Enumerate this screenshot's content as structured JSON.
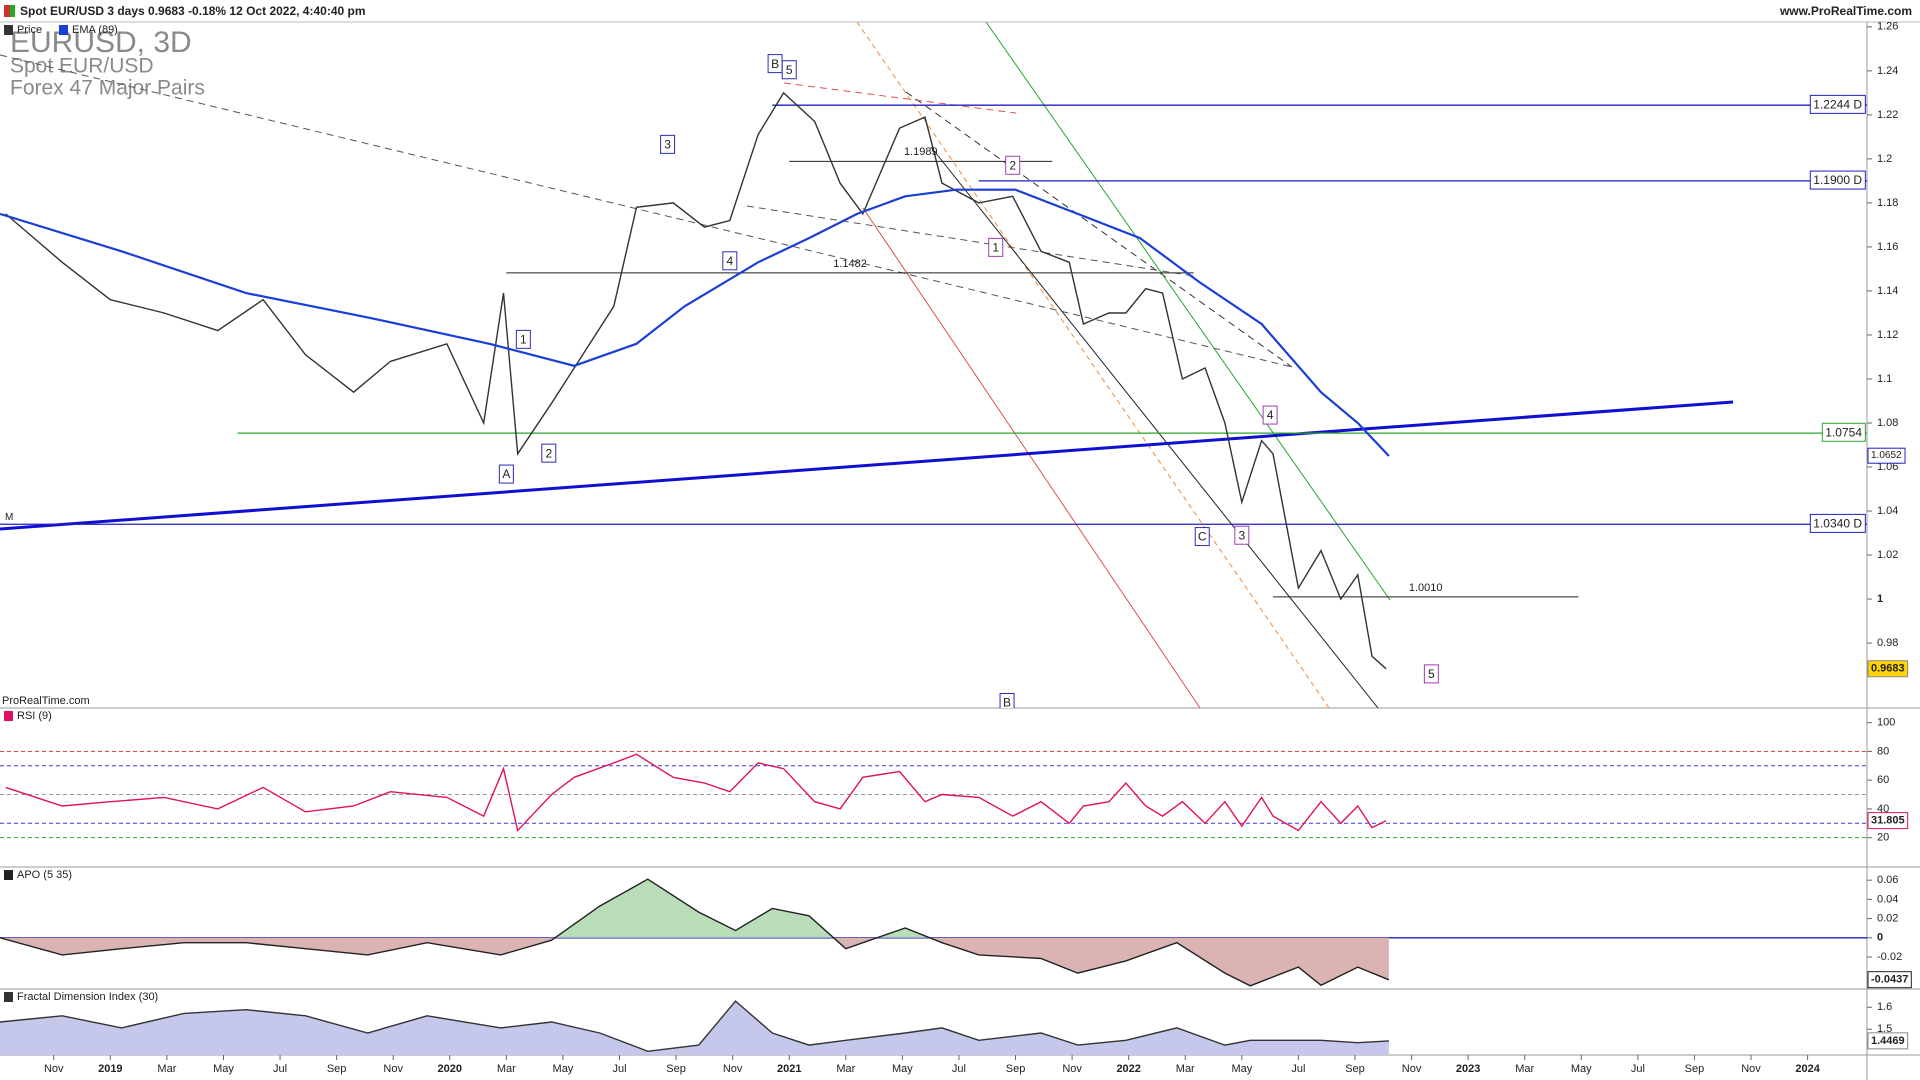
{
  "header": {
    "title": "Spot EUR/USD 3 days 0.9683 -0.18% 12 Oct 2022, 4:40:40 pm",
    "site": "www.ProRealTime.com"
  },
  "overlay": {
    "symbol": "EURUSD, 3D",
    "name": "Spot EUR/USD",
    "group": "Forex 47 Major Pairs",
    "watermark": "ProRealTime.com"
  },
  "chart_data": [
    {
      "type": "line",
      "xlim": [
        -1.9,
        64.1
      ],
      "ylim": [
        0.9505,
        1.2622
      ],
      "yticks": [
        1.26,
        1.24,
        1.22,
        1.2,
        1.18,
        1.16,
        1.14,
        1.12,
        1.1,
        1.08,
        1.06,
        1.04,
        1.02,
        1,
        0.98
      ],
      "series": [
        {
          "name": "Price",
          "color": "#333333",
          "badge_color": "#ffd400",
          "x": [
            -1.7,
            0.3,
            2.0,
            3.9,
            5.8,
            7.4,
            8.9,
            10.6,
            11.9,
            13.9,
            15.2,
            15.9,
            16.4,
            17.6,
            18.4,
            19.8,
            20.6,
            21.9,
            23.0,
            23.9,
            24.9,
            25.8,
            26.9,
            27.8,
            28.6,
            29.9,
            30.8,
            31.4,
            32.7,
            33.9,
            34.9,
            35.9,
            36.4,
            37.3,
            37.9,
            38.6,
            39.2,
            39.9,
            40.7,
            41.4,
            42.0,
            42.7,
            43.1,
            44.0,
            44.8,
            45.5,
            46.1,
            46.6,
            47.1
          ],
          "values": [
            1.175,
            1.153,
            1.136,
            1.13,
            1.122,
            1.136,
            1.111,
            1.094,
            1.108,
            1.116,
            1.08,
            1.139,
            1.066,
            1.089,
            1.105,
            1.133,
            1.178,
            1.18,
            1.169,
            1.172,
            1.211,
            1.23,
            1.217,
            1.189,
            1.175,
            1.214,
            1.219,
            1.189,
            1.18,
            1.183,
            1.158,
            1.153,
            1.125,
            1.13,
            1.13,
            1.141,
            1.139,
            1.1,
            1.105,
            1.08,
            1.044,
            1.072,
            1.066,
            1.005,
            1.022,
            1.0,
            1.011,
            0.974,
            0.9683
          ]
        },
        {
          "name": "EMA (89)",
          "color": "#1a3fd6",
          "x": [
            -1.9,
            2.4,
            6.8,
            11.1,
            15.4,
            18.4,
            20.6,
            22.3,
            24.9,
            26.7,
            28.4,
            30.1,
            31.9,
            34.0,
            36.2,
            38.4,
            40.5,
            42.7,
            44.8,
            46.1,
            47.2
          ],
          "values": [
            1.175,
            1.158,
            1.139,
            1.128,
            1.116,
            1.106,
            1.116,
            1.133,
            1.153,
            1.164,
            1.175,
            1.183,
            1.186,
            1.186,
            1.175,
            1.164,
            1.144,
            1.125,
            1.094,
            1.08,
            1.065
          ]
        }
      ],
      "levels": [
        {
          "value": 1.2244,
          "label": "1.2244 D",
          "color": "#1f1fbf",
          "x": [
            25.4,
            64.1
          ]
        },
        {
          "value": 1.19,
          "label": "1.1900 D",
          "color": "#1f1fbf",
          "x": [
            32.7,
            64.1
          ]
        },
        {
          "value": 1.0754,
          "label": "1.0754",
          "color": "#2aa52a",
          "x": [
            6.5,
            64.1
          ]
        },
        {
          "value": 1.0652,
          "label": "1.0652",
          "color": "#1f1fbf",
          "line": false
        },
        {
          "value": 1.034,
          "label": "1.0340 D",
          "color": "#1f1fbf",
          "tag": "M"
        }
      ],
      "segments": [
        {
          "value": 1.1989,
          "label": "1.1989",
          "x": [
            26.0,
            35.3
          ]
        },
        {
          "value": 1.1482,
          "label": "1.1482",
          "x": [
            16.0,
            40.3
          ]
        },
        {
          "value": 1.001,
          "label": "1.0010",
          "x": [
            43.1,
            53.9
          ]
        }
      ],
      "wave_labels": [
        {
          "text": "B",
          "x": 25.5,
          "y": 1.2433,
          "color": "#2b2bb8"
        },
        {
          "text": "5",
          "x": 26.0,
          "y": 1.2405,
          "color": "#2b2bb8"
        },
        {
          "text": "3",
          "x": 21.7,
          "y": 1.2066,
          "color": "#2b2bb8"
        },
        {
          "text": "4",
          "x": 23.9,
          "y": 1.1537,
          "color": "#2b2bb8"
        },
        {
          "text": "1",
          "x": 16.6,
          "y": 1.118,
          "color": "#2b2bb8"
        },
        {
          "text": "2",
          "x": 17.5,
          "y": 1.0663,
          "color": "#2b2bb8"
        },
        {
          "text": "A",
          "x": 16.0,
          "y": 1.0568,
          "color": "#2b2bb8"
        },
        {
          "text": "2",
          "x": 33.9,
          "y": 1.1971,
          "color": "#a23cb4"
        },
        {
          "text": "1",
          "x": 33.3,
          "y": 1.1598,
          "color": "#a23cb4"
        },
        {
          "text": "4",
          "x": 43.0,
          "y": 1.0836,
          "color": "#a23cb4"
        },
        {
          "text": "3",
          "x": 42.0,
          "y": 1.029,
          "color": "#a23cb4"
        },
        {
          "text": "C",
          "x": 40.6,
          "y": 1.0284,
          "color": "#2b2bb8"
        },
        {
          "text": "5",
          "x": 48.7,
          "y": 0.966,
          "color": "#a23cb4"
        },
        {
          "text": "B",
          "x": 33.7,
          "y": 0.953,
          "color": "#2b2bb8"
        }
      ]
    },
    {
      "type": "line",
      "xlim": [
        -1.9,
        64.1
      ],
      "ylim": [
        -0.4,
        110.2
      ],
      "yticks": [
        100,
        80,
        60,
        40,
        20
      ],
      "series": [
        {
          "name": "RSI (9)",
          "color": "#e0115f",
          "badge_color": "#ffffff",
          "x": [
            -1.7,
            0.3,
            2.0,
            3.9,
            5.8,
            7.4,
            8.9,
            10.6,
            11.9,
            13.9,
            15.2,
            15.9,
            16.4,
            17.6,
            18.4,
            19.8,
            20.6,
            21.9,
            23.0,
            23.9,
            24.9,
            25.8,
            26.9,
            27.8,
            28.6,
            29.9,
            30.8,
            31.4,
            32.7,
            33.9,
            34.9,
            35.9,
            36.4,
            37.3,
            37.9,
            38.6,
            39.2,
            39.9,
            40.7,
            41.4,
            42.0,
            42.7,
            43.1,
            44.0,
            44.8,
            45.5,
            46.1,
            46.6,
            47.1
          ],
          "values": [
            55,
            42,
            45,
            48,
            40,
            55,
            38,
            42,
            52,
            48,
            35,
            68,
            25,
            50,
            62,
            72,
            78,
            62,
            58,
            52,
            72,
            68,
            45,
            40,
            62,
            66,
            45,
            50,
            48,
            35,
            45,
            30,
            42,
            45,
            58,
            42,
            35,
            45,
            30,
            45,
            28,
            48,
            35,
            25,
            45,
            30,
            42,
            27,
            31.805
          ]
        }
      ],
      "levels": [
        {
          "value": 80,
          "color": "#d9343a",
          "dash": true
        },
        {
          "value": 70,
          "color": "#3a3ad9",
          "dash": true
        },
        {
          "value": 50,
          "color": "#999999",
          "dash": true
        },
        {
          "value": 30,
          "color": "#3a3ad9",
          "dash": true
        },
        {
          "value": 20,
          "color": "#2aa52a",
          "dash": true
        }
      ]
    },
    {
      "type": "area",
      "xlim": [
        -1.9,
        64.1
      ],
      "ylim": [
        -0.0533,
        0.0737
      ],
      "yticks": [
        0.06,
        0.04,
        0.02,
        0,
        -0.02,
        -0.04
      ],
      "fill_positive": "#b9dcb9",
      "fill_negative": "#dcb3b3",
      "series": [
        {
          "name": "APO (5 35)",
          "color": "#222222",
          "badge_color": "#ffffff",
          "x": [
            -1.9,
            0.3,
            2.4,
            4.6,
            6.8,
            8.9,
            11.1,
            13.2,
            15.8,
            17.6,
            19.3,
            21.0,
            22.8,
            24.1,
            25.4,
            26.7,
            28.0,
            30.1,
            31.4,
            32.7,
            34.9,
            36.2,
            37.9,
            39.7,
            41.4,
            42.3,
            44.0,
            44.8,
            46.1,
            47.2
          ],
          "values": [
            0,
            -0.0178,
            -0.0114,
            -0.0051,
            -0.0051,
            -0.0114,
            -0.0178,
            -0.0051,
            -0.0178,
            -0.0025,
            0.033,
            0.061,
            0.0267,
            0.0076,
            0.0305,
            0.0229,
            -0.0114,
            0.0102,
            -0.0051,
            -0.0178,
            -0.0216,
            -0.0368,
            -0.0241,
            -0.0051,
            -0.0368,
            -0.05,
            -0.0305,
            -0.0495,
            -0.0305,
            -0.0437
          ]
        }
      ],
      "levels": [
        {
          "value": 0,
          "color": "#1f1fbf"
        }
      ]
    },
    {
      "type": "area",
      "xlim": [
        -1.9,
        64.1
      ],
      "ylim": [
        1.383,
        1.683
      ],
      "yticks": [
        1.6,
        1.5
      ],
      "fill": "#c5c8ea",
      "series": [
        {
          "name": "Fractal Dimension Index (30)",
          "color": "#333333",
          "badge_color": "#ffffff",
          "x": [
            -1.9,
            0.3,
            2.4,
            4.6,
            6.8,
            8.9,
            11.1,
            13.2,
            15.8,
            17.6,
            19.3,
            21.0,
            22.8,
            24.1,
            25.4,
            26.7,
            28.0,
            30.1,
            31.4,
            32.7,
            34.9,
            36.2,
            37.9,
            39.7,
            41.4,
            42.3,
            44.0,
            44.8,
            46.1,
            47.2
          ],
          "values": [
            1.533,
            1.561,
            1.506,
            1.572,
            1.589,
            1.561,
            1.483,
            1.561,
            1.506,
            1.533,
            1.483,
            1.4,
            1.428,
            1.628,
            1.483,
            1.428,
            1.45,
            1.483,
            1.506,
            1.45,
            1.483,
            1.428,
            1.45,
            1.506,
            1.428,
            1.45,
            1.45,
            1.45,
            1.439,
            1.4469
          ]
        }
      ],
      "xticks": [
        {
          "value": 0,
          "label": "Nov"
        },
        {
          "value": 2,
          "label": "2019"
        },
        {
          "value": 4,
          "label": "Mar"
        },
        {
          "value": 6,
          "label": "May"
        },
        {
          "value": 8,
          "label": "Jul"
        },
        {
          "value": 10,
          "label": "Sep"
        },
        {
          "value": 12,
          "label": "Nov"
        },
        {
          "value": 14,
          "label": "2020"
        },
        {
          "value": 16,
          "label": "Mar"
        },
        {
          "value": 18,
          "label": "May"
        },
        {
          "value": 20,
          "label": "Jul"
        },
        {
          "value": 22,
          "label": "Sep"
        },
        {
          "value": 24,
          "label": "Nov"
        },
        {
          "value": 26,
          "label": "2021"
        },
        {
          "value": 28,
          "label": "Mar"
        },
        {
          "value": 30,
          "label": "May"
        },
        {
          "value": 32,
          "label": "Jul"
        },
        {
          "value": 34,
          "label": "Sep"
        },
        {
          "value": 36,
          "label": "Nov"
        },
        {
          "value": 38,
          "label": "2022"
        },
        {
          "value": 40,
          "label": "Mar"
        },
        {
          "value": 42,
          "label": "May"
        },
        {
          "value": 44,
          "label": "Jul"
        },
        {
          "value": 46,
          "label": "Sep"
        },
        {
          "value": 48,
          "label": "Nov"
        },
        {
          "value": 50,
          "label": "2023"
        },
        {
          "value": 52,
          "label": "Mar"
        },
        {
          "value": 54,
          "label": "May"
        },
        {
          "value": 56,
          "label": "Jul"
        },
        {
          "value": 58,
          "label": "Sep"
        },
        {
          "value": 60,
          "label": "Nov"
        },
        {
          "value": 62,
          "label": "2024"
        }
      ]
    }
  ]
}
